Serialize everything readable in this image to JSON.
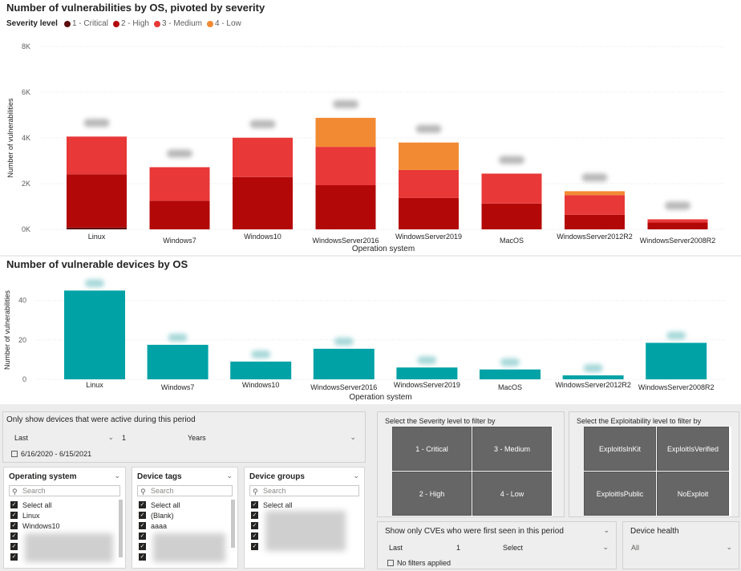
{
  "chart_data": [
    {
      "type": "bar",
      "stacked": true,
      "title": "Number of vulnerabilities by OS, pivoted by severity",
      "legend_title": "Severity level",
      "xlabel": "Operation system",
      "ylabel": "Number of vulnerabilities",
      "ylim": [
        0,
        8000
      ],
      "yticks": [
        0,
        2000,
        4000,
        6000,
        8000
      ],
      "ytick_labels": [
        "0K",
        "2K",
        "4K",
        "6K",
        "8K"
      ],
      "categories": [
        "Linux",
        "Windows7",
        "Windows10",
        "WindowsServer2016",
        "WindowsServer2019",
        "MacOS",
        "WindowsServer2012R2",
        "WindowsServer2008R2"
      ],
      "series": [
        {
          "name": "1 - Critical",
          "color": "#5c0d0d",
          "values": [
            80,
            0,
            0,
            0,
            0,
            0,
            0,
            0
          ]
        },
        {
          "name": "2 - High",
          "color": "#b30808",
          "values": [
            2330,
            1250,
            2290,
            1930,
            1370,
            1130,
            640,
            300
          ]
        },
        {
          "name": "3 - Medium",
          "color": "#e83838",
          "values": [
            1650,
            1470,
            1720,
            1680,
            1230,
            1310,
            860,
            140
          ]
        },
        {
          "name": "4 - Low",
          "color": "#f28a33",
          "values": [
            0,
            0,
            0,
            1270,
            1200,
            0,
            170,
            0
          ]
        }
      ]
    },
    {
      "type": "bar",
      "title": "Number of vulnerable devices by OS",
      "xlabel": "Operation system",
      "ylabel": "Number of vulnerabilities",
      "ylim": [
        0,
        50
      ],
      "yticks": [
        0,
        20,
        40
      ],
      "ytick_labels": [
        "0",
        "20",
        "40"
      ],
      "color": "#01a2a6",
      "categories": [
        "Linux",
        "Windows7",
        "Windows10",
        "WindowsServer2016",
        "WindowsServer2019",
        "MacOS",
        "WindowsServer2012R2",
        "WindowsServer2008R2"
      ],
      "values": [
        45,
        17.5,
        9,
        15.5,
        6,
        5,
        2,
        18.5
      ]
    }
  ],
  "filters": {
    "period": {
      "title": "Only show devices that were active during this period",
      "dd1": "Last",
      "num": "1",
      "dd2": "Years",
      "range": "6/16/2020 - 6/15/2021"
    },
    "os_slicer": {
      "title": "Operating system",
      "search": "Search",
      "items": [
        "Select all",
        "Linux",
        "Windows10"
      ]
    },
    "tags_slicer": {
      "title": "Device tags",
      "search": "Search",
      "items": [
        "Select all",
        "(Blank)",
        "aaaa"
      ]
    },
    "groups_slicer": {
      "title": "Device groups",
      "search": "Search",
      "items": [
        "Select all"
      ]
    },
    "severity": {
      "title": "Select the Severity level to filter by",
      "tiles": [
        "1 - Critical",
        "3 - Medium",
        "2 - High",
        "4 - Low"
      ]
    },
    "exploitability": {
      "title": "Select the Exploitability level to filter by",
      "tiles": [
        "ExploitIsInKit",
        "ExploitIsVerified",
        "ExploitIsPublic",
        "NoExploit"
      ]
    },
    "cves": {
      "title": "Show only CVEs who were first seen in this period",
      "dd1": "Last",
      "num": "1",
      "dd2": "Select",
      "status": "No filters applied"
    },
    "health": {
      "title": "Device health",
      "value": "All"
    }
  },
  "colors": {
    "teal": "#01a2a6",
    "tile": "#666666"
  }
}
